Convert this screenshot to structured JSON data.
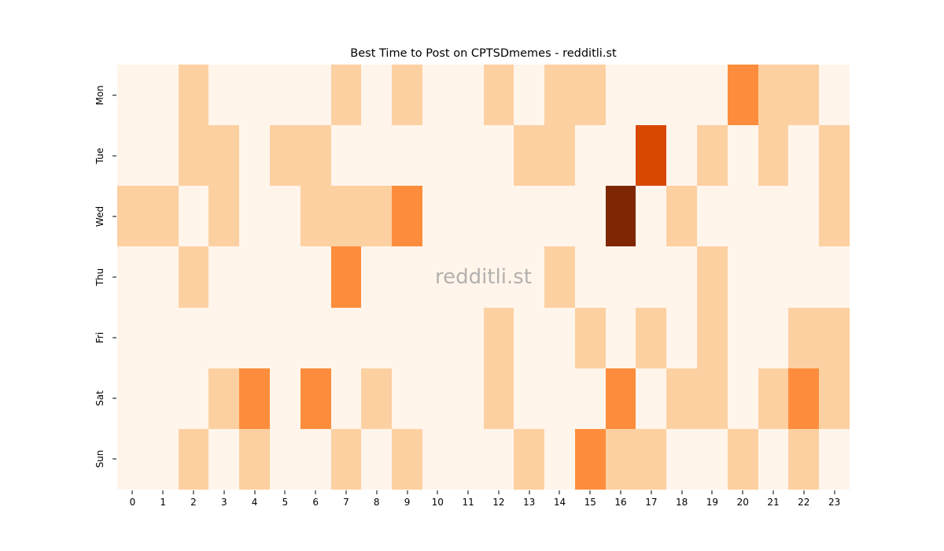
{
  "chart_data": {
    "type": "heatmap",
    "title": "Best Time to Post on CPTSDmemes - redditli.st",
    "watermark": "redditli.st",
    "xlabel": "",
    "ylabel": "",
    "rows": [
      "Mon",
      "Tue",
      "Wed",
      "Thu",
      "Fri",
      "Sat",
      "Sun"
    ],
    "columns": [
      "0",
      "1",
      "2",
      "3",
      "4",
      "5",
      "6",
      "7",
      "8",
      "9",
      "10",
      "11",
      "12",
      "13",
      "14",
      "15",
      "16",
      "17",
      "18",
      "19",
      "20",
      "21",
      "22",
      "23"
    ],
    "values": [
      [
        0,
        0,
        1,
        0,
        0,
        0,
        0,
        1,
        0,
        1,
        0,
        0,
        1,
        0,
        1,
        1,
        0,
        0,
        0,
        0,
        2,
        1,
        1,
        0
      ],
      [
        0,
        0,
        1,
        1,
        0,
        1,
        1,
        0,
        0,
        0,
        0,
        0,
        0,
        1,
        1,
        0,
        0,
        3,
        0,
        1,
        0,
        1,
        0,
        1
      ],
      [
        1,
        1,
        0,
        1,
        0,
        0,
        1,
        1,
        1,
        2,
        0,
        0,
        0,
        0,
        0,
        0,
        4,
        0,
        1,
        0,
        0,
        0,
        0,
        1
      ],
      [
        0,
        0,
        1,
        0,
        0,
        0,
        0,
        2,
        0,
        0,
        0,
        0,
        0,
        0,
        1,
        0,
        0,
        0,
        0,
        1,
        0,
        0,
        0,
        0
      ],
      [
        0,
        0,
        0,
        0,
        0,
        0,
        0,
        0,
        0,
        0,
        0,
        0,
        1,
        0,
        0,
        1,
        0,
        1,
        0,
        1,
        0,
        0,
        1,
        1
      ],
      [
        0,
        0,
        0,
        1,
        2,
        0,
        2,
        0,
        1,
        0,
        0,
        0,
        1,
        0,
        0,
        0,
        2,
        0,
        1,
        1,
        0,
        1,
        2,
        1
      ],
      [
        0,
        0,
        1,
        0,
        1,
        0,
        0,
        1,
        0,
        1,
        0,
        0,
        0,
        1,
        0,
        2,
        1,
        1,
        0,
        0,
        1,
        0,
        1,
        0
      ]
    ],
    "value_min": 0,
    "value_max": 4,
    "palette_name": "Oranges",
    "colorscale": {
      "0": "#fff5eb",
      "1": "#fdd0a2",
      "2": "#fd8d3c",
      "3": "#d94801",
      "4": "#7f2704"
    },
    "legend": "none",
    "grid_lines": false,
    "background_color": "#ffffff",
    "text_color": "#000000",
    "watermark_color": "#b3b1ae"
  }
}
